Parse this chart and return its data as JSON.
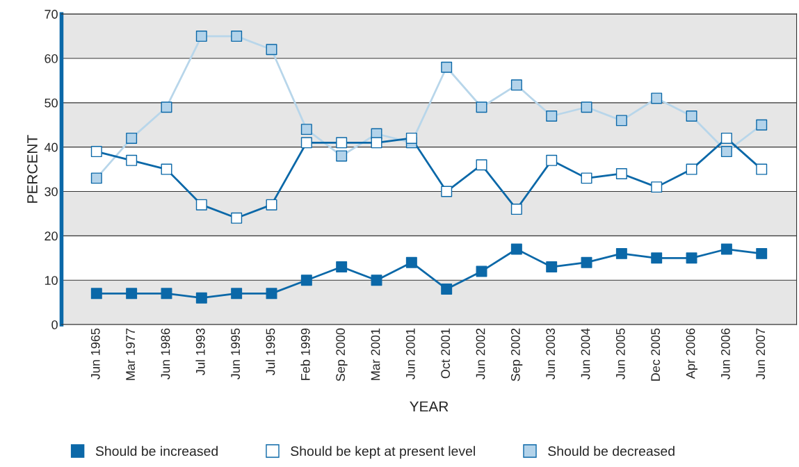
{
  "chart_data": {
    "type": "line",
    "xlabel": "YEAR",
    "ylabel": "PERCENT",
    "categories": [
      "Jun 1965",
      "Mar 1977",
      "Jun 1986",
      "Jul 1993",
      "Jun 1995",
      "Jul 1995",
      "Feb 1999",
      "Sep 2000",
      "Mar 2001",
      "Jun 2001",
      "Oct 2001",
      "Jun 2002",
      "Sep 2002",
      "Jun 2003",
      "Jun 2004",
      "Jun 2005",
      "Dec 2005",
      "Apr 2006",
      "Jun 2006",
      "Jun 2007"
    ],
    "series": [
      {
        "name": "Should be increased",
        "color": "#0b68a8",
        "colors": [
          "#0b68a8",
          "#0b68a8",
          "#0b68a8",
          "#0b68a8",
          "#0b68a8",
          "#0b68a8",
          "#0b68a8",
          "#0b68a8",
          "#0b68a8",
          "#0b68a8",
          "#0b68a8",
          "#0b68a8",
          "#0b68a8",
          "#0b68a8",
          "#0b68a8",
          "#0b68a8",
          "#0b68a8",
          "#0b68a8",
          "#0b68a8",
          "#0b68a8"
        ],
        "values": [
          7,
          7,
          7,
          6,
          7,
          7,
          10,
          13,
          10,
          14,
          8,
          12,
          17,
          13,
          14,
          16,
          15,
          15,
          17,
          16
        ]
      },
      {
        "name": "Should be kept at present level",
        "color": "#0b68a8",
        "colors": [
          "#ffffff",
          "#ffffff",
          "#ffffff",
          "#ffffff",
          "#ffffff",
          "#ffffff",
          "#ffffff",
          "#ffffff",
          "#ffffff",
          "#ffffff",
          "#ffffff",
          "#ffffff",
          "#ffffff",
          "#ffffff",
          "#ffffff",
          "#ffffff",
          "#ffffff",
          "#ffffff",
          "#ffffff",
          "#ffffff"
        ],
        "values": [
          39,
          37,
          35,
          27,
          24,
          27,
          41,
          41,
          41,
          42,
          30,
          36,
          26,
          37,
          33,
          34,
          31,
          35,
          42,
          35
        ]
      },
      {
        "name": "Should be decreased",
        "color": "#b8d6ea",
        "colors": [
          "#b3d3ea",
          "#b3d3ea",
          "#b3d3ea",
          "#b3d3ea",
          "#b3d3ea",
          "#b3d3ea",
          "#b3d3ea",
          "#b3d3ea",
          "#b3d3ea",
          "#b3d3ea",
          "#b3d3ea",
          "#b3d3ea",
          "#b3d3ea",
          "#b3d3ea",
          "#b3d3ea",
          "#b3d3ea",
          "#b3d3ea",
          "#b3d3ea",
          "#b3d3ea",
          "#b3d3ea"
        ],
        "values": [
          33,
          42,
          49,
          65,
          65,
          62,
          44,
          38,
          43,
          41,
          58,
          49,
          54,
          47,
          49,
          46,
          51,
          47,
          39,
          45
        ]
      }
    ],
    "ylim": [
      0,
      70
    ],
    "yticks": [
      0,
      10,
      20,
      30,
      40,
      50,
      60,
      70
    ],
    "bands": [
      {
        "axis": "y",
        "from": 0,
        "to": 10,
        "color": "#e6e6e6"
      },
      {
        "axis": "y",
        "from": 20,
        "to": 30,
        "color": "#e6e6e6"
      },
      {
        "axis": "y",
        "from": 40,
        "to": 50,
        "color": "#e6e6e6"
      },
      {
        "axis": "y",
        "from": 60,
        "to": 70,
        "color": "#e6e6e6"
      }
    ],
    "grid": "y",
    "legend": "bottom",
    "marker": "square",
    "line_style": "solid"
  }
}
